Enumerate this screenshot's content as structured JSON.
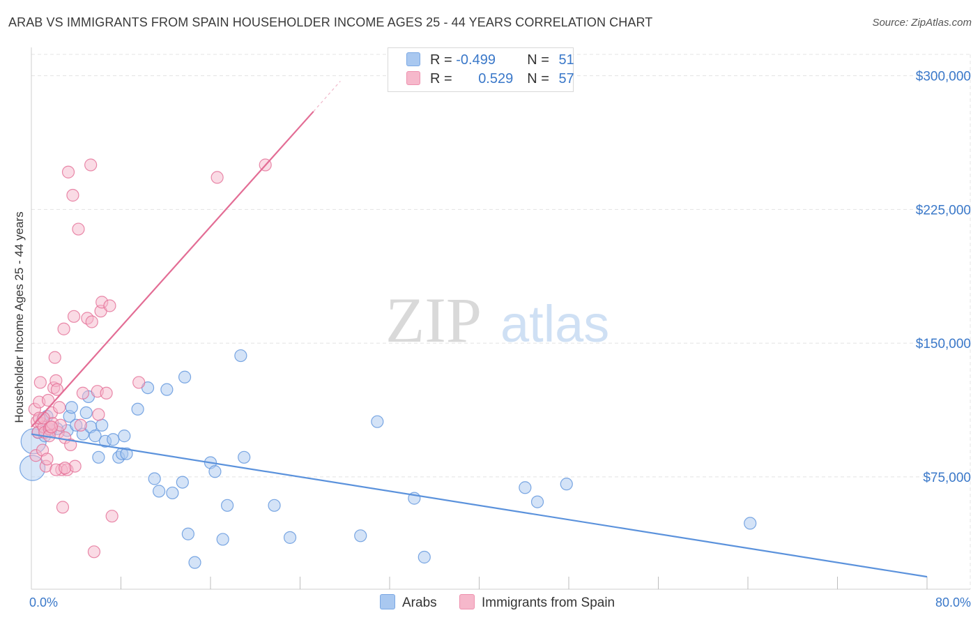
{
  "header": {
    "title": "ARAB VS IMMIGRANTS FROM SPAIN HOUSEHOLDER INCOME AGES 25 - 44 YEARS CORRELATION CHART",
    "source": "Source: ZipAtlas.com"
  },
  "watermark": {
    "zip": "ZIP",
    "atlas": "atlas"
  },
  "legend": {
    "rows": [
      {
        "r_label": "R = ",
        "r_value": "-0.499",
        "n_label": "N = ",
        "n_value": "51",
        "color": "#a9c8f0"
      },
      {
        "r_label": "R = ",
        "r_value": "0.529",
        "n_label": "N = ",
        "n_value": "57",
        "color": "#f6b8cb"
      }
    ]
  },
  "chart_data": {
    "type": "scatter",
    "title": "ARAB VS IMMIGRANTS FROM SPAIN HOUSEHOLDER INCOME AGES 25 - 44 YEARS CORRELATION CHART",
    "xlabel": "",
    "ylabel": "Householder Income Ages 25 - 44 years",
    "xlim": [
      0,
      80
    ],
    "ylim": [
      12000,
      312000
    ],
    "x_tick_labels": [
      "0.0%",
      "80.0%"
    ],
    "y_ticks": [
      300000,
      225000,
      150000,
      75000
    ],
    "y_tick_labels": [
      "$300,000",
      "$225,000",
      "$150,000",
      "$75,000"
    ],
    "grid": true,
    "legend_position": "bottom",
    "series": [
      {
        "name": "Arabs",
        "color": "#5b92dc",
        "fill": "#a9c8f0",
        "trend": {
          "x": [
            0,
            80
          ],
          "y": [
            99000,
            19000
          ]
        },
        "points": [
          [
            0.1,
            80000
          ],
          [
            0.2,
            95000
          ],
          [
            0.6,
            100000
          ],
          [
            1.0,
            107000
          ],
          [
            1.2,
            98000
          ],
          [
            1.4,
            109000
          ],
          [
            2.3,
            102000
          ],
          [
            3.2,
            101000
          ],
          [
            3.4,
            109000
          ],
          [
            3.6,
            114000
          ],
          [
            4.0,
            104000
          ],
          [
            4.6,
            99000
          ],
          [
            4.9,
            111000
          ],
          [
            5.1,
            120000
          ],
          [
            5.3,
            103000
          ],
          [
            5.7,
            98000
          ],
          [
            6.0,
            86000
          ],
          [
            6.3,
            104000
          ],
          [
            6.6,
            95000
          ],
          [
            7.3,
            96000
          ],
          [
            7.8,
            86000
          ],
          [
            8.1,
            88000
          ],
          [
            8.3,
            98000
          ],
          [
            8.5,
            88000
          ],
          [
            9.5,
            113000
          ],
          [
            10.4,
            125000
          ],
          [
            11.0,
            74000
          ],
          [
            11.4,
            67000
          ],
          [
            12.1,
            124000
          ],
          [
            12.6,
            66000
          ],
          [
            13.5,
            72000
          ],
          [
            13.7,
            131000
          ],
          [
            14.0,
            43000
          ],
          [
            14.6,
            27000
          ],
          [
            16.0,
            83000
          ],
          [
            16.4,
            78000
          ],
          [
            17.1,
            40000
          ],
          [
            17.5,
            59000
          ],
          [
            18.7,
            143000
          ],
          [
            19.0,
            86000
          ],
          [
            21.7,
            59000
          ],
          [
            23.1,
            41000
          ],
          [
            29.4,
            42000
          ],
          [
            30.9,
            106000
          ],
          [
            34.2,
            63000
          ],
          [
            35.1,
            30000
          ],
          [
            44.1,
            69000
          ],
          [
            45.2,
            61000
          ],
          [
            47.8,
            71000
          ],
          [
            64.2,
            49000
          ],
          [
            1.7,
            101000
          ]
        ]
      },
      {
        "name": "Immigrants from Spain",
        "color": "#e36d95",
        "fill": "#f6b8cb",
        "trend": {
          "x": [
            0,
            25.2
          ],
          "y": [
            103000,
            280000
          ]
        },
        "trend_dashed": {
          "x": [
            25.2,
            27.6
          ],
          "y": [
            280000,
            297000
          ]
        },
        "points": [
          [
            0.3,
            113000
          ],
          [
            0.4,
            87000
          ],
          [
            0.5,
            106000
          ],
          [
            0.6,
            100000
          ],
          [
            0.7,
            117000
          ],
          [
            0.8,
            128000
          ],
          [
            0.9,
            105000
          ],
          [
            1.0,
            90000
          ],
          [
            1.1,
            103000
          ],
          [
            1.2,
            100000
          ],
          [
            1.3,
            81000
          ],
          [
            1.4,
            85000
          ],
          [
            1.5,
            118000
          ],
          [
            1.6,
            102000
          ],
          [
            1.7,
            103000
          ],
          [
            1.8,
            111000
          ],
          [
            1.9,
            105000
          ],
          [
            2.0,
            125000
          ],
          [
            2.1,
            142000
          ],
          [
            2.2,
            129000
          ],
          [
            2.3,
            124000
          ],
          [
            2.4,
            100000
          ],
          [
            2.5,
            114000
          ],
          [
            2.6,
            104000
          ],
          [
            2.7,
            79000
          ],
          [
            2.8,
            58000
          ],
          [
            2.9,
            158000
          ],
          [
            3.0,
            97000
          ],
          [
            3.2,
            79000
          ],
          [
            3.3,
            246000
          ],
          [
            3.5,
            93000
          ],
          [
            3.7,
            233000
          ],
          [
            3.8,
            165000
          ],
          [
            3.9,
            81000
          ],
          [
            4.2,
            214000
          ],
          [
            4.4,
            104000
          ],
          [
            4.6,
            122000
          ],
          [
            5.0,
            164000
          ],
          [
            5.3,
            250000
          ],
          [
            5.4,
            162000
          ],
          [
            5.6,
            33000
          ],
          [
            5.9,
            123000
          ],
          [
            6.0,
            110000
          ],
          [
            6.2,
            168000
          ],
          [
            6.3,
            173000
          ],
          [
            6.7,
            122000
          ],
          [
            7.0,
            171000
          ],
          [
            7.2,
            53000
          ],
          [
            9.6,
            128000
          ],
          [
            16.6,
            243000
          ],
          [
            20.9,
            250000
          ],
          [
            1.6,
            98000
          ],
          [
            2.2,
            79000
          ],
          [
            3.0,
            80000
          ],
          [
            0.7,
            108000
          ],
          [
            1.1,
            108000
          ],
          [
            1.8,
            103000
          ]
        ]
      }
    ]
  },
  "bottom_legend": {
    "items": [
      {
        "label": "Arabs",
        "color": "#a9c8f0"
      },
      {
        "label": "Immigrants from Spain",
        "color": "#f6b8cb"
      }
    ]
  }
}
